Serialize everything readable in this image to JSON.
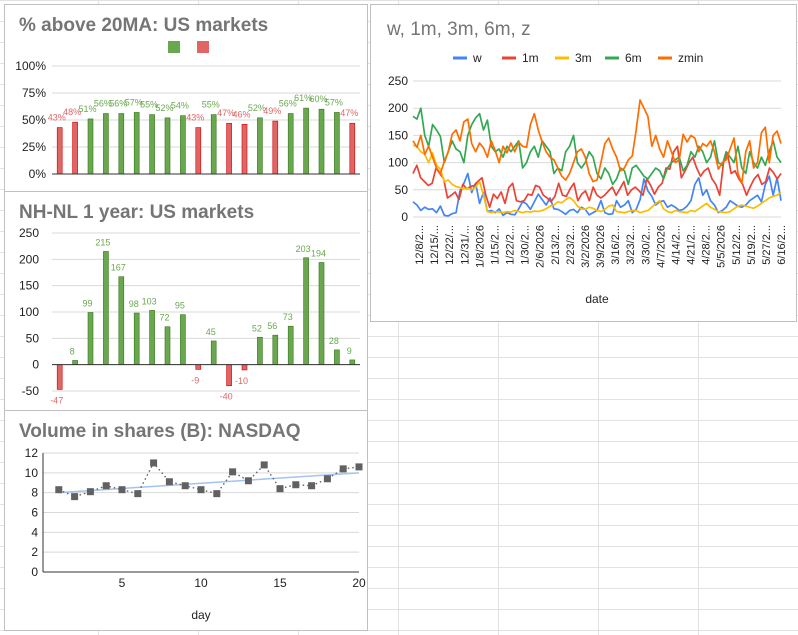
{
  "colors": {
    "green": "#6aa84f",
    "red": "#e06666",
    "grid": "#d9d9d9",
    "axis": "#333333",
    "text": "#222222",
    "trend": "#a4c2f4",
    "marker": "#616161"
  },
  "chart_data": [
    {
      "type": "bar",
      "title": "% above 20MA: US markets",
      "legend": {
        "placement": "top",
        "colors": [
          "#6aa84f",
          "#e06666"
        ]
      },
      "ylim": [
        0,
        1
      ],
      "yticks": [
        "0%",
        "25%",
        "50%",
        "75%",
        "100%"
      ],
      "values": [
        0.43,
        0.48,
        0.51,
        0.56,
        0.56,
        0.57,
        0.55,
        0.52,
        0.54,
        0.43,
        0.55,
        0.47,
        0.46,
        0.52,
        0.49,
        0.56,
        0.61,
        0.6,
        0.57,
        0.47
      ],
      "colors": [
        "red",
        "red",
        "green",
        "green",
        "green",
        "green",
        "green",
        "green",
        "green",
        "red",
        "green",
        "red",
        "red",
        "green",
        "red",
        "green",
        "green",
        "green",
        "green",
        "red"
      ],
      "labels": [
        "43%",
        "48%",
        "51%",
        "56%",
        "56%",
        "57%",
        "55%",
        "52%",
        "54%",
        "43%",
        "55%",
        "47%",
        "46%",
        "52%",
        "49%",
        "56%",
        "61%",
        "60%",
        "57%",
        "47%"
      ]
    },
    {
      "type": "bar",
      "title": "NH-NL 1 year: US markets",
      "ylim": [
        -50,
        250
      ],
      "yticks": [
        "-50",
        "0",
        "50",
        "100",
        "150",
        "200",
        "250"
      ],
      "values": [
        -47,
        8,
        99,
        215,
        167,
        98,
        103,
        72,
        95,
        -9,
        45,
        -40,
        -10,
        52,
        56,
        73,
        203,
        194,
        28,
        9
      ],
      "labels": [
        "-47",
        "8",
        "99",
        "215",
        "167",
        "98",
        "103",
        "72",
        "95",
        "-9",
        "45",
        "-40",
        "-10",
        "52",
        "56",
        "73",
        "203",
        "194",
        "28",
        "9"
      ]
    },
    {
      "type": "scatter",
      "title": "Volume in shares (B): NASDAQ",
      "xlabel": "day",
      "xlim": [
        0,
        20
      ],
      "ylim": [
        0,
        12
      ],
      "xticks": [
        "5",
        "10",
        "15",
        "20"
      ],
      "yticks": [
        "0",
        "2",
        "4",
        "6",
        "8",
        "10",
        "12"
      ],
      "x": [
        1,
        2,
        3,
        4,
        5,
        6,
        7,
        8,
        9,
        10,
        11,
        12,
        13,
        14,
        15,
        16,
        17,
        18,
        19,
        20
      ],
      "y": [
        8.3,
        7.6,
        8.1,
        8.7,
        8.3,
        7.9,
        11.0,
        9.1,
        8.7,
        8.3,
        7.9,
        10.1,
        9.2,
        10.8,
        8.4,
        8.8,
        8.7,
        9.4,
        10.4,
        10.6
      ],
      "trendline": {
        "from": [
          1,
          8.0
        ],
        "to": [
          20,
          10.0
        ]
      }
    },
    {
      "type": "line",
      "title": "w, 1m, 3m, 6m, z",
      "xlabel": "date",
      "ylim": [
        0,
        250
      ],
      "yticks": [
        "0",
        "50",
        "100",
        "150",
        "200",
        "250"
      ],
      "legend": {
        "placement": "top"
      },
      "xticks": [
        "12/8/2...",
        "12/15/...",
        "12/22/...",
        "12/31/...",
        "1/8/2026",
        "1/15/2...",
        "1/22/2...",
        "1/30/2...",
        "2/6/2026",
        "2/13/2...",
        "2/23/2...",
        "3/2/2026",
        "3/9/2026",
        "3/16/2...",
        "3/23/2...",
        "3/30/2...",
        "4/7/2026",
        "4/14/2...",
        "4/21/2...",
        "4/28/2...",
        "5/5/2026",
        "5/12/2...",
        "5/19/2...",
        "5/27/2...",
        "6/16/2..."
      ],
      "series": [
        {
          "name": "w",
          "color": "#4285f4",
          "values": [
            28,
            22,
            12,
            18,
            14,
            15,
            8,
            20,
            3,
            2,
            6,
            8,
            48,
            62,
            80,
            45,
            62,
            25,
            45,
            10,
            12,
            8,
            15,
            3,
            8,
            5,
            4,
            15,
            28,
            24,
            14,
            28,
            42,
            32,
            22,
            35,
            15,
            14,
            10,
            5,
            12,
            14,
            8,
            18,
            14,
            4,
            8,
            12,
            30,
            8,
            5,
            6,
            30,
            18,
            22,
            30,
            8,
            14,
            32,
            70,
            48,
            38,
            22,
            28,
            30,
            18,
            22,
            18,
            12,
            14,
            20,
            30,
            60,
            72,
            40,
            50,
            30,
            22,
            8,
            12,
            18,
            30,
            25,
            20,
            18,
            22,
            30,
            35,
            40,
            28,
            60,
            75,
            40,
            72,
            30
          ]
        },
        {
          "name": "1m",
          "color": "#ea4335",
          "values": [
            80,
            95,
            72,
            65,
            58,
            62,
            90,
            80,
            70,
            35,
            40,
            46,
            32,
            60,
            52,
            56,
            58,
            66,
            72,
            40,
            18,
            42,
            34,
            46,
            25,
            54,
            62,
            30,
            28,
            30,
            42,
            40,
            58,
            55,
            40,
            35,
            28,
            38,
            62,
            40,
            38,
            52,
            62,
            30,
            42,
            48,
            30,
            55,
            40,
            35,
            40,
            48,
            55,
            40,
            52,
            65,
            40,
            50,
            55,
            48,
            40,
            70,
            58,
            42,
            55,
            62,
            90,
            88,
            120,
            130,
            72,
            85,
            100,
            110,
            90,
            75,
            85,
            90,
            70,
            60,
            40,
            100,
            118,
            80,
            85,
            70,
            60,
            40,
            56,
            70,
            78,
            60,
            65,
            90,
            82,
            70,
            80
          ]
        },
        {
          "name": "3m",
          "color": "#fbbc04",
          "values": [
            132,
            130,
            120,
            115,
            100,
            118,
            95,
            88,
            65,
            68,
            60,
            56,
            54,
            52,
            53,
            50,
            55,
            65,
            40,
            10,
            8,
            10,
            9,
            8,
            10,
            9,
            12,
            10,
            8,
            10,
            9,
            11,
            10,
            12,
            15,
            20,
            22,
            28,
            26,
            32,
            36,
            30,
            20,
            15,
            14,
            18,
            16,
            12,
            10,
            14,
            20,
            22,
            10,
            9,
            8,
            10,
            12,
            12,
            8,
            10,
            12,
            18,
            25,
            30,
            15,
            10,
            8,
            12,
            10,
            9,
            8,
            12,
            10,
            15,
            20,
            25,
            18,
            14,
            10,
            9,
            8,
            10,
            15,
            20,
            22,
            20,
            18,
            16,
            20,
            25,
            30,
            35,
            38,
            40,
            45
          ]
        },
        {
          "name": "6m",
          "color": "#34a853",
          "values": [
            185,
            180,
            200,
            150,
            130,
            170,
            160,
            148,
            100,
            120,
            140,
            125,
            120,
            100,
            150,
            170,
            182,
            190,
            160,
            178,
            130,
            120,
            125,
            110,
            130,
            120,
            130,
            140,
            90,
            100,
            120,
            130,
            110,
            140,
            130,
            120,
            80,
            90,
            85,
            120,
            130,
            150,
            100,
            90,
            100,
            120,
            110,
            80,
            70,
            90,
            80,
            60,
            70,
            90,
            85,
            60,
            90,
            95,
            85,
            75,
            70,
            80,
            90,
            85,
            70,
            90,
            100,
            105,
            110,
            85,
            95,
            120,
            110,
            130,
            120,
            100,
            110,
            140,
            100,
            95,
            120,
            110,
            100,
            130,
            90,
            80,
            120,
            100,
            90,
            110,
            95,
            120,
            140,
            110,
            100
          ]
        },
        {
          "name": "zmin",
          "color": "#ff6d01",
          "values": [
            140,
            128,
            150,
            115,
            130,
            110,
            90,
            80,
            102,
            120,
            152,
            160,
            140,
            175,
            180,
            135,
            120,
            136,
            127,
            110,
            140,
            122,
            100,
            130,
            118,
            136,
            120,
            138,
            130,
            128,
            170,
            190,
            160,
            138,
            120,
            110,
            105,
            90,
            75,
            68,
            80,
            100,
            120,
            125,
            110,
            80,
            65,
            68,
            100,
            135,
            145,
            125,
            110,
            85,
            90,
            105,
            112,
            160,
            215,
            200,
            185,
            130,
            150,
            125,
            110,
            140,
            120,
            100,
            105,
            152,
            138,
            150,
            145,
            120,
            135,
            130,
            140,
            120,
            88,
            100,
            105,
            125,
            145,
            80,
            62,
            120,
            140,
            90,
            100,
            155,
            165,
            100,
            150,
            158,
            135
          ]
        }
      ]
    }
  ]
}
